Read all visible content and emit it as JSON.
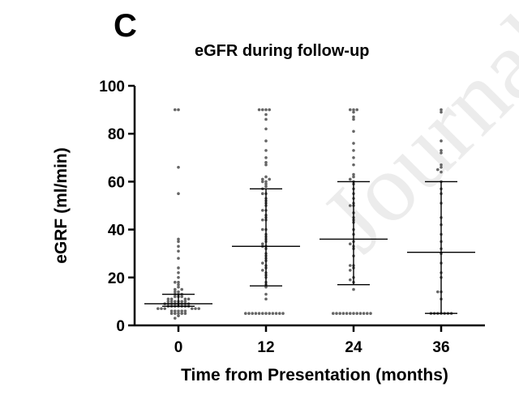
{
  "panel_label": "C",
  "watermark": "Journal",
  "chart_data": {
    "type": "scatter",
    "title": "eGFR during follow-up",
    "xlabel": "Time from Presentation (months)",
    "ylabel": "eGRF (ml/min)",
    "categories": [
      "0",
      "12",
      "24",
      "36"
    ],
    "ylim": [
      0,
      100
    ],
    "yticks": [
      0,
      20,
      40,
      60,
      80,
      100
    ],
    "grid": false,
    "summary_statistics": [
      {
        "category": "0",
        "median": 9,
        "lower": 8,
        "upper": 13
      },
      {
        "category": "12",
        "median": 33,
        "lower": 16.5,
        "upper": 57
      },
      {
        "category": "24",
        "median": 36,
        "lower": 17,
        "upper": 60
      },
      {
        "category": "36",
        "median": 30.5,
        "lower": 5,
        "upper": 60
      }
    ],
    "series": [
      {
        "category": "0",
        "values": [
          90,
          90,
          66,
          55,
          36,
          35,
          33,
          31,
          28,
          24,
          22,
          20,
          18,
          18,
          17,
          16,
          15,
          15,
          14,
          14,
          13,
          13,
          13,
          12,
          12,
          12,
          11,
          11,
          11,
          11,
          10,
          10,
          10,
          10,
          10,
          10,
          9,
          9,
          9,
          9,
          9,
          9,
          9,
          9,
          8,
          8,
          8,
          8,
          8,
          8,
          8,
          7,
          7,
          7,
          7,
          7,
          7,
          6,
          6,
          6,
          6,
          6,
          5,
          5,
          5,
          5,
          5,
          4,
          3
        ]
      },
      {
        "category": "12",
        "values": [
          90,
          90,
          90,
          90,
          88,
          86,
          82,
          77,
          73,
          70,
          68,
          67,
          62,
          61,
          61,
          60,
          60,
          59,
          58,
          57,
          55,
          55,
          53,
          52,
          51,
          50,
          48,
          48,
          46,
          45,
          44,
          44,
          40,
          40,
          38,
          37,
          36,
          35,
          34,
          33,
          33,
          32,
          30,
          29,
          28,
          27,
          26,
          25,
          24,
          23,
          22,
          21,
          20,
          18,
          17,
          16,
          13,
          11,
          5,
          5,
          5,
          5,
          5,
          5,
          5,
          5,
          5,
          5,
          5,
          5
        ]
      },
      {
        "category": "24",
        "values": [
          90,
          90,
          90,
          89,
          87,
          86,
          81,
          76,
          73,
          70,
          67,
          63,
          62,
          61,
          60,
          59,
          57,
          55,
          53,
          51,
          50,
          50,
          47,
          45,
          44,
          43,
          40,
          38,
          35,
          34,
          33,
          32,
          29,
          25,
          25,
          24,
          23,
          20,
          19,
          18,
          15,
          5,
          5,
          5,
          5,
          5,
          5,
          5,
          5,
          5,
          5,
          5,
          5
        ]
      },
      {
        "category": "36",
        "values": [
          90,
          89,
          77,
          73,
          72,
          67,
          66,
          65,
          64,
          60,
          57,
          55,
          51,
          45,
          42,
          38,
          35,
          32,
          30,
          26,
          22,
          20,
          14,
          14,
          11,
          5,
          5,
          5,
          5,
          5,
          5,
          5
        ]
      }
    ]
  }
}
